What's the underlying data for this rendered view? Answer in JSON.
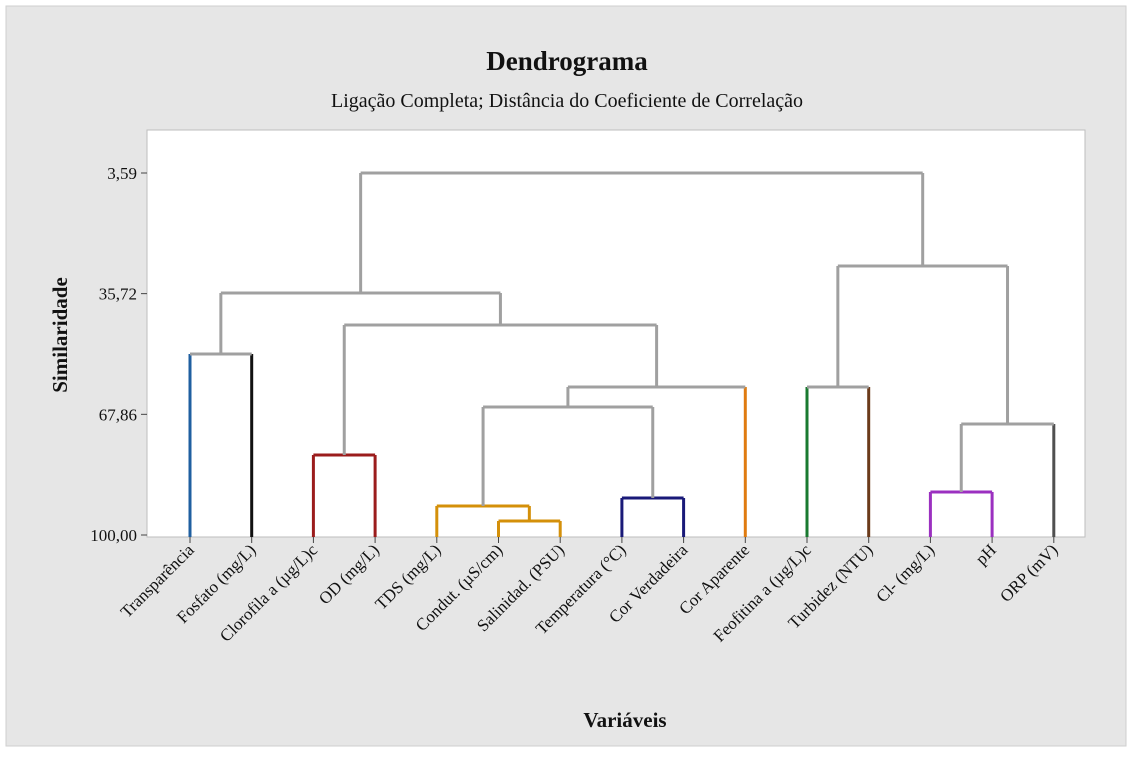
{
  "chart_data": {
    "type": "dendrogram",
    "title": "Dendrograma",
    "subtitle": "Ligação Completa; Distância do Coeficiente de Correlação",
    "y_label": "Similaridade",
    "x_label": "Variáveis",
    "categories": [
      "Transparência",
      "Fosfato (mg/L)",
      "Clorofila a (µg/L)c",
      "OD (mg/L)",
      "TDS (mg/L)",
      "Condut. (µS/cm)",
      "Salinidad. (PSU)",
      "Temperatura (°C)",
      "Cor Verdadeira",
      "Cor Aparente",
      "Feofitina a (µg/L)c",
      "Turbidez (NTU)",
      "Cl- (mg/L)",
      "pH",
      "ORP (mV)"
    ],
    "leaf_colors": [
      "#1f5fa0",
      "#111111",
      "#9b1c1c",
      "#9b1c1c",
      "#d4900a",
      "#d4900a",
      "#d4900a",
      "#1a1a78",
      "#1a1a78",
      "#e07b10",
      "#1a7a30",
      "#6b3a1a",
      "#9b30c0",
      "#9b30c0",
      "#505050"
    ],
    "merges": [
      {
        "left": 0,
        "right": 1,
        "similarity": 51.79,
        "color": "#a0a0a0"
      },
      {
        "left": 2,
        "right": 3,
        "similarity": 78.69,
        "color": "#9b1c1c"
      },
      {
        "left": 5,
        "right": 6,
        "similarity": 96.27,
        "color": "#d4900a"
      },
      {
        "left": 4,
        "right": 17,
        "similarity": 92.27,
        "color": "#d4900a"
      },
      {
        "left": 7,
        "right": 8,
        "similarity": 90.14,
        "color": "#1a1a78"
      },
      {
        "left": 18,
        "right": 19,
        "similarity": 65.91,
        "color": "#a0a0a0"
      },
      {
        "left": 20,
        "right": 9,
        "similarity": 60.58,
        "color": "#a0a0a0"
      },
      {
        "left": 16,
        "right": 21,
        "similarity": 44.07,
        "color": "#a0a0a0"
      },
      {
        "left": 15,
        "right": 22,
        "similarity": 35.55,
        "color": "#a0a0a0"
      },
      {
        "left": 10,
        "right": 11,
        "similarity": 60.58,
        "color": "#a0a0a0"
      },
      {
        "left": 12,
        "right": 13,
        "similarity": 88.54,
        "color": "#9b30c0"
      },
      {
        "left": 25,
        "right": 14,
        "similarity": 70.43,
        "color": "#a0a0a0"
      },
      {
        "left": 24,
        "right": 26,
        "similarity": 28.36,
        "color": "#a0a0a0"
      },
      {
        "left": 23,
        "right": 27,
        "similarity": 3.59,
        "color": "#a0a0a0"
      }
    ],
    "ylim": [
      100.53,
      -7.86
    ],
    "yticks": [
      {
        "value": 3.59,
        "label": "3,59"
      },
      {
        "value": 35.72,
        "label": "35,72"
      },
      {
        "value": 67.86,
        "label": "67,86"
      },
      {
        "value": 100.0,
        "label": "100,00"
      }
    ]
  }
}
